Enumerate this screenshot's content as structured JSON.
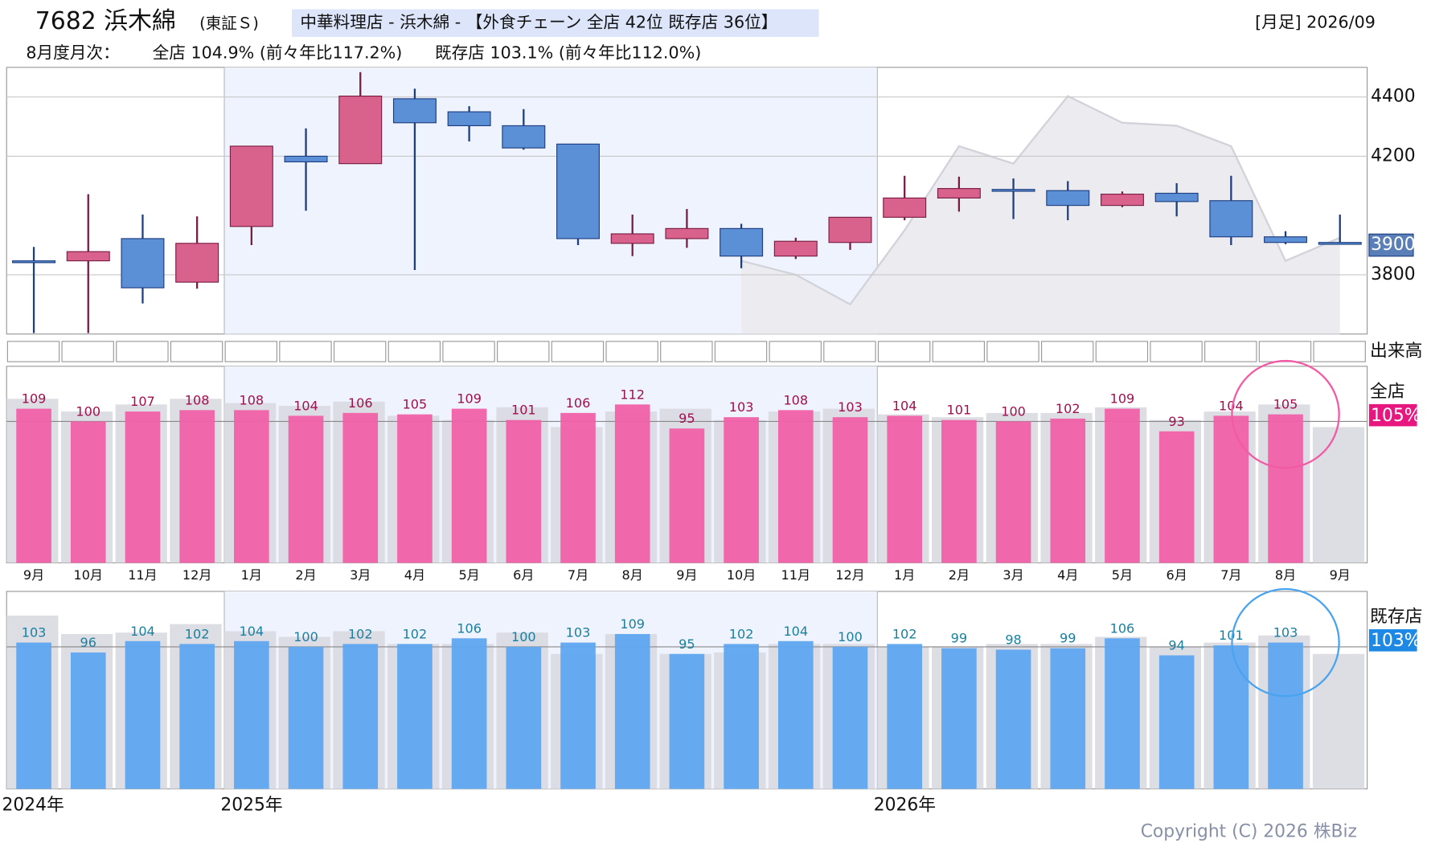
{
  "chart_data": [
    {
      "type": "candlestick",
      "title": "7682 浜木綿",
      "exchange": "(東証Ｓ)",
      "subtitle": "中華料理店 - 浜木綿 - 【外食チェーン 全店 42位 既存店 36位】",
      "period": "[月足] 2026/09",
      "summary_heading": "8月度月次：",
      "summary_all": "全店 104.9% (前々年比117.2%)",
      "summary_existing": "既存店 103.1% (前々年比112.0%)",
      "categories": [
        "9月",
        "10月",
        "11月",
        "12月",
        "1月",
        "2月",
        "3月",
        "4月",
        "5月",
        "6月",
        "7月",
        "8月",
        "9月",
        "10月",
        "11月",
        "12月",
        "1月",
        "2月",
        "3月",
        "4月",
        "5月",
        "6月",
        "7月",
        "8月",
        "9月"
      ],
      "year_labels": [
        "2024年",
        "2025年",
        "2026年"
      ],
      "open": [
        3847,
        3847,
        3922,
        3775,
        3963,
        4200,
        4175,
        4394,
        4350,
        4303,
        4241,
        3906,
        3922,
        3956,
        3863,
        3909,
        3994,
        4059,
        4088,
        4084,
        4034,
        4075,
        4050,
        3928,
        3909
      ],
      "high": [
        3894,
        4072,
        4003,
        3997,
        4234,
        4294,
        4484,
        4428,
        4369,
        4359,
        4241,
        4003,
        4022,
        3972,
        3925,
        3994,
        4134,
        4131,
        4125,
        4116,
        4081,
        4109,
        4134,
        3947,
        4003
      ],
      "low": [
        3603,
        3603,
        3703,
        3753,
        3900,
        4016,
        4175,
        3816,
        4250,
        4222,
        3900,
        3863,
        3891,
        3822,
        3853,
        3884,
        3984,
        4013,
        3988,
        3984,
        4028,
        3997,
        3900,
        3903,
        3903
      ],
      "close": [
        3847,
        3878,
        3756,
        3906,
        4234,
        4181,
        4403,
        4313,
        4303,
        4228,
        3922,
        3938,
        3956,
        3863,
        3913,
        3994,
        4059,
        4091,
        4088,
        4034,
        4072,
        4047,
        3928,
        3909,
        3903
      ],
      "overlay": [
        null,
        null,
        null,
        null,
        null,
        null,
        null,
        null,
        null,
        null,
        null,
        null,
        null,
        3847,
        3800,
        3700,
        3950,
        4234,
        4175,
        4403,
        4313,
        4303,
        4234,
        3847,
        3925
      ],
      "last_price": 3900,
      "ylim": [
        3600,
        4500
      ],
      "yticks": [
        3800,
        4200,
        4400
      ],
      "grid": true,
      "up_color": "#d9628c",
      "down_color": "#5b8fd6",
      "volume_label": "出来高"
    },
    {
      "type": "bar",
      "label": "全店",
      "latest_label": "105%",
      "color": "#f060a8",
      "label_color": "#a0104f",
      "prev_color": "#d9d9e1",
      "values": [
        109,
        100,
        107,
        108,
        108,
        104,
        106,
        105,
        109,
        101,
        106,
        112,
        95,
        103,
        108,
        103,
        104,
        101,
        100,
        102,
        109,
        93,
        104,
        105,
        null
      ],
      "prev_values": [
        116,
        107,
        112,
        116,
        113,
        111,
        114,
        104,
        101,
        110,
        96,
        107,
        109,
        101,
        107,
        109,
        105,
        103,
        106,
        106,
        110,
        101,
        107,
        112,
        96
      ],
      "reference": 100,
      "ylim": [
        0,
        139
      ]
    },
    {
      "type": "bar",
      "label": "既存店",
      "latest_label": "103%",
      "color": "#5ea6f0",
      "label_color": "#1a7fa0",
      "prev_color": "#d9d9e1",
      "values": [
        103,
        96,
        104,
        102,
        104,
        100,
        102,
        102,
        106,
        100,
        103,
        109,
        95,
        102,
        104,
        100,
        102,
        99,
        98,
        99,
        106,
        94,
        101,
        103,
        null
      ],
      "prev_values": [
        122,
        109,
        110,
        116,
        111,
        107,
        111,
        102,
        102,
        110,
        95,
        109,
        95,
        96,
        102,
        102,
        100,
        100,
        102,
        102,
        107,
        100,
        103,
        108,
        95
      ],
      "reference": 100,
      "ylim": [
        0,
        139
      ]
    }
  ],
  "copyright": "Copyright (C) 2026 株Biz"
}
